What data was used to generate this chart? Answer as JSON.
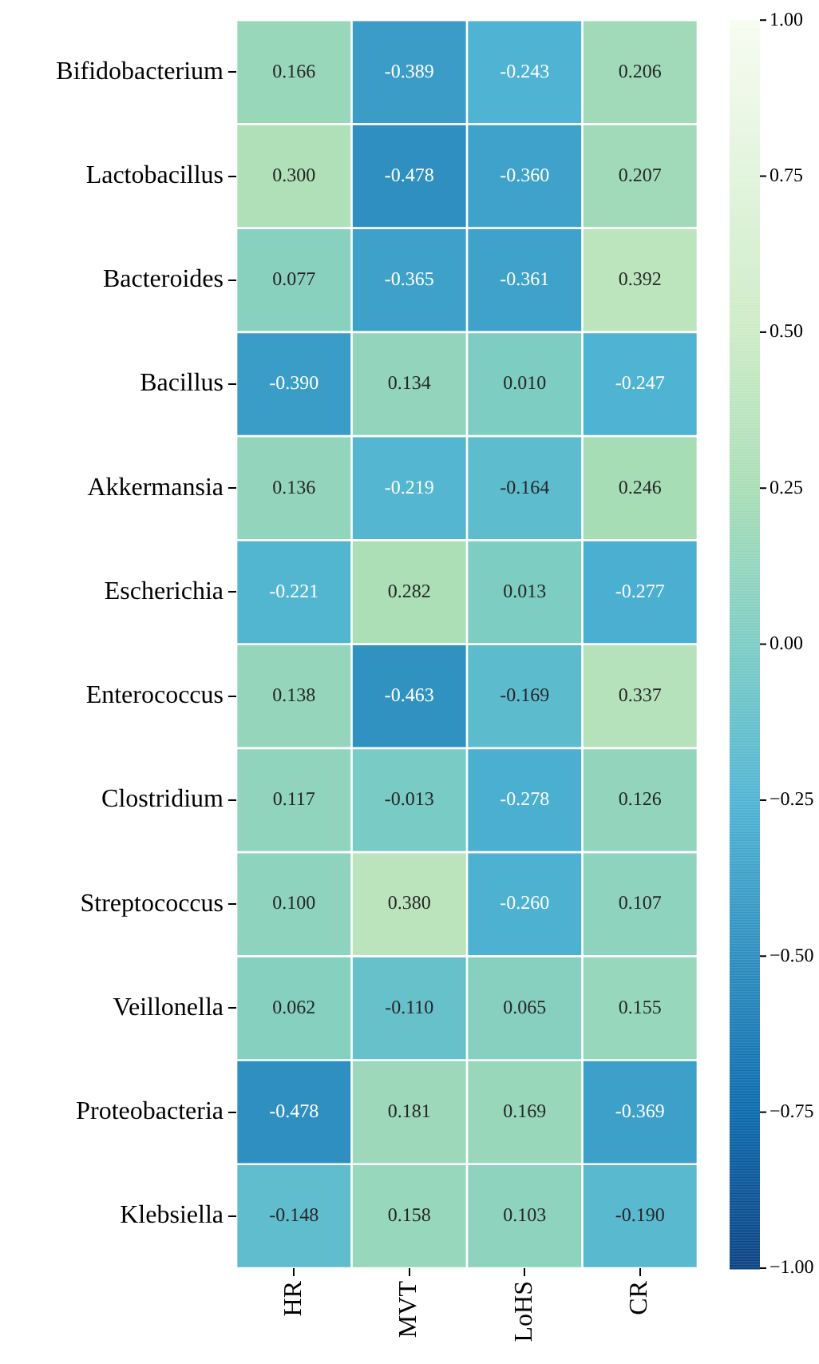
{
  "chart_data": {
    "type": "heatmap",
    "categories": [
      "HR",
      "MVT",
      "LoHS",
      "CR"
    ],
    "y_categories": [
      "Bifidobacterium",
      "Lactobacillus",
      "Bacteroides",
      "Bacillus",
      "Akkermansia",
      "Escherichia",
      "Enterococcus",
      "Clostridium",
      "Streptococcus",
      "Veillonella",
      "Proteobacteria",
      "Klebsiella"
    ],
    "cells": [
      [
        0.166,
        -0.389,
        -0.243,
        0.206
      ],
      [
        0.3,
        -0.478,
        -0.36,
        0.207
      ],
      [
        0.077,
        -0.365,
        -0.361,
        0.392
      ],
      [
        -0.39,
        0.134,
        0.01,
        -0.247
      ],
      [
        0.136,
        -0.219,
        -0.164,
        0.246
      ],
      [
        -0.221,
        0.282,
        0.013,
        -0.277
      ],
      [
        0.138,
        -0.463,
        -0.169,
        0.337
      ],
      [
        0.117,
        -0.013,
        -0.278,
        0.126
      ],
      [
        0.1,
        0.38,
        -0.26,
        0.107
      ],
      [
        0.062,
        -0.11,
        0.065,
        0.155
      ],
      [
        -0.478,
        0.181,
        0.169,
        -0.369
      ],
      [
        -0.148,
        0.158,
        0.103,
        -0.19
      ]
    ],
    "cell_labels": [
      [
        "0.166",
        "-0.389",
        "-0.243",
        "0.206"
      ],
      [
        "0.300",
        "-0.478",
        "-0.360",
        "0.207"
      ],
      [
        "0.077",
        "-0.365",
        "-0.361",
        "0.392"
      ],
      [
        "-0.390",
        "0.134",
        "0.010",
        "-0.247"
      ],
      [
        "0.136",
        "-0.219",
        "-0.164",
        "0.246"
      ],
      [
        "-0.221",
        "0.282",
        "0.013",
        "-0.277"
      ],
      [
        "0.138",
        "-0.463",
        "-0.169",
        "0.337"
      ],
      [
        "0.117",
        "-0.013",
        "-0.278",
        "0.126"
      ],
      [
        "0.100",
        "0.380",
        "-0.260",
        "0.107"
      ],
      [
        "0.062",
        "-0.110",
        "0.065",
        "0.155"
      ],
      [
        "-0.478",
        "0.181",
        "0.169",
        "-0.369"
      ],
      [
        "-0.148",
        "0.158",
        "0.103",
        "-0.190"
      ]
    ],
    "clim": [
      -1,
      1
    ],
    "cticks": [
      {
        "value": -1,
        "label": "−1.00"
      },
      {
        "value": -0.75,
        "label": "−0.75"
      },
      {
        "value": -0.5,
        "label": "−0.50"
      },
      {
        "value": -0.25,
        "label": "−0.25"
      },
      {
        "value": 0,
        "label": "0.00"
      },
      {
        "value": 0.25,
        "label": "0.25"
      },
      {
        "value": 0.5,
        "label": "0.50"
      },
      {
        "value": 0.75,
        "label": "0.75"
      },
      {
        "value": 1,
        "label": "1.00"
      }
    ]
  }
}
